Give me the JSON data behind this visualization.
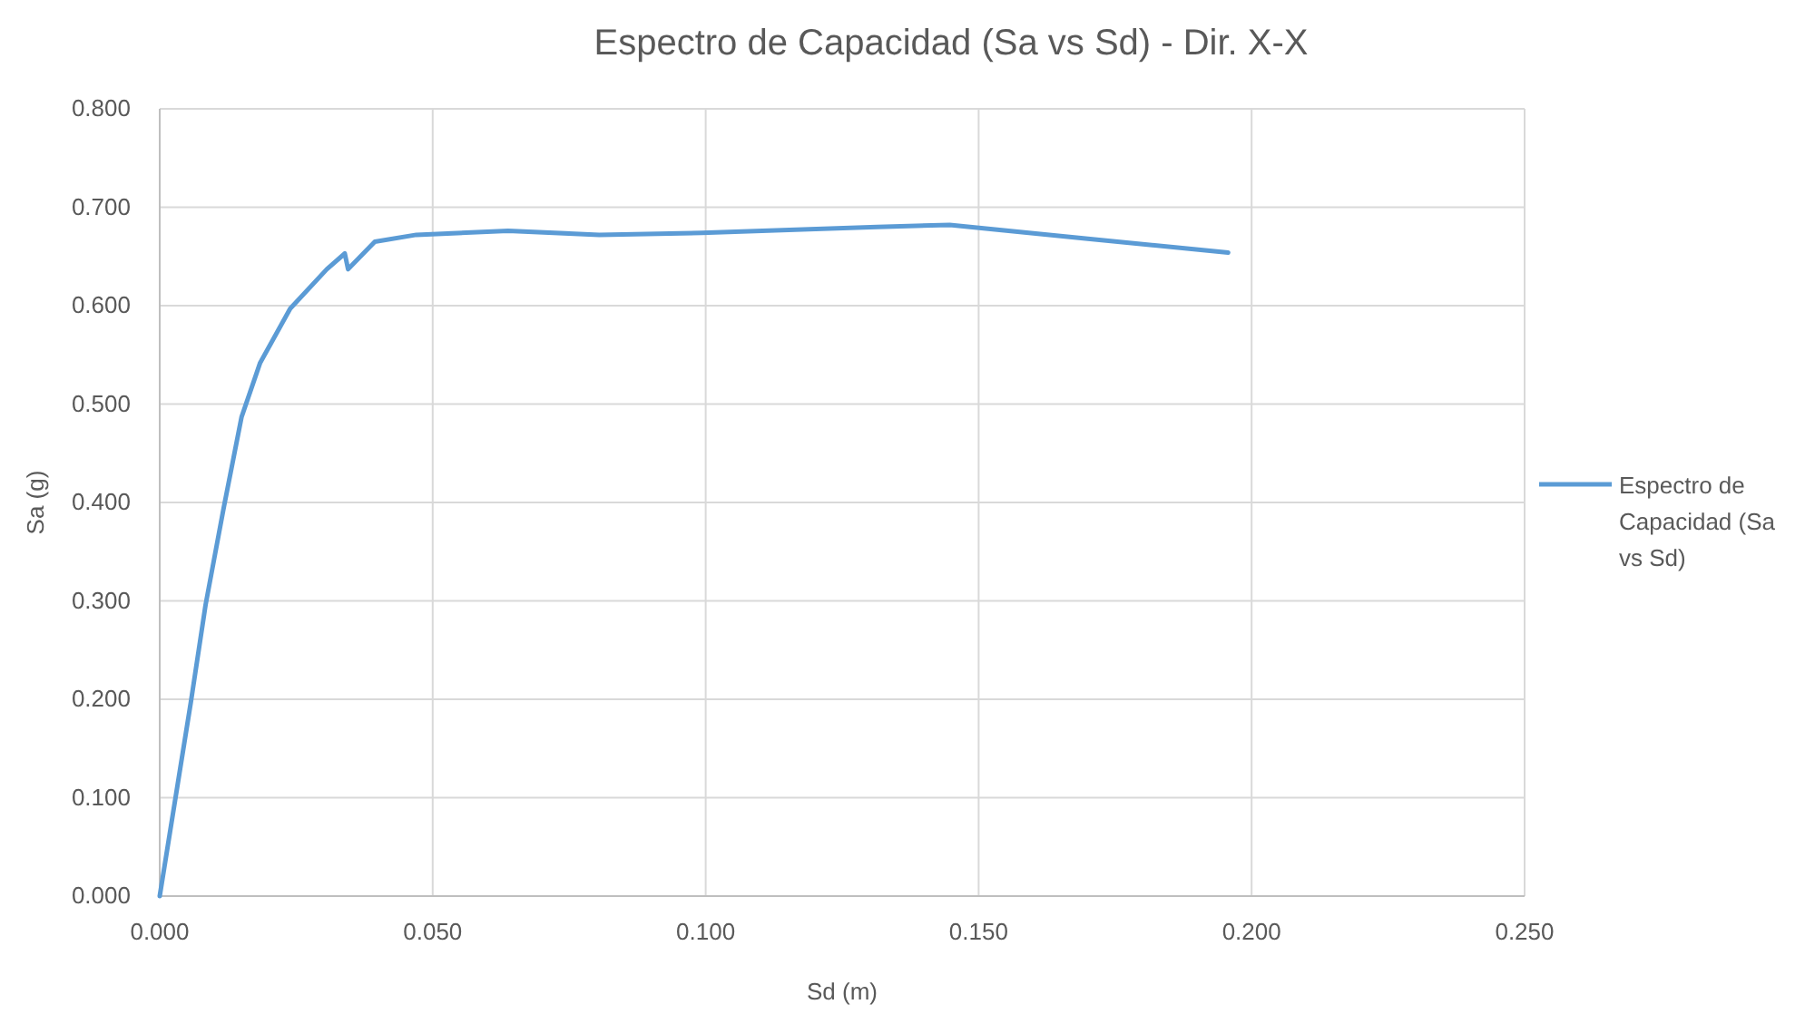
{
  "chart_data": {
    "type": "line",
    "title": "Espectro de Capacidad (Sa vs Sd) - Dir. X-X",
    "xlabel": "Sd (m)",
    "ylabel": "Sa (g)",
    "series": [
      {
        "name": "Espectro de Capacidad (Sa vs Sd)",
        "color": "#5b9bd5",
        "x": [
          0,
          0.0057,
          0.0084,
          0.0117,
          0.015,
          0.0184,
          0.0239,
          0.0306,
          0.0339,
          0.0345,
          0.0394,
          0.047,
          0.0638,
          0.0805,
          0.0993,
          0.1314,
          0.1447,
          0.17,
          0.1957
        ],
        "values": [
          0,
          0.197,
          0.296,
          0.394,
          0.487,
          0.542,
          0.597,
          0.637,
          0.653,
          0.637,
          0.665,
          0.672,
          0.676,
          0.672,
          0.674,
          0.68,
          0.682,
          0.668,
          0.654
        ]
      }
    ],
    "xlim": [
      0,
      0.25
    ],
    "xticks": [
      {
        "value": 0,
        "label": "0.000"
      },
      {
        "value": 0.05,
        "label": "0.050"
      },
      {
        "value": 0.1,
        "label": "0.100"
      },
      {
        "value": 0.15,
        "label": "0.150"
      },
      {
        "value": 0.2,
        "label": "0.200"
      },
      {
        "value": 0.25,
        "label": "0.250"
      }
    ],
    "ylim": [
      0,
      0.8
    ],
    "yticks": [
      {
        "value": 0,
        "label": "0.000"
      },
      {
        "value": 0.1,
        "label": "0.100"
      },
      {
        "value": 0.2,
        "label": "0.200"
      },
      {
        "value": 0.3,
        "label": "0.300"
      },
      {
        "value": 0.4,
        "label": "0.400"
      },
      {
        "value": 0.5,
        "label": "0.500"
      },
      {
        "value": 0.6,
        "label": "0.600"
      },
      {
        "value": 0.7,
        "label": "0.700"
      },
      {
        "value": 0.8,
        "label": "0.800"
      }
    ],
    "grid": true,
    "legend": "right",
    "line_style": "solid"
  }
}
